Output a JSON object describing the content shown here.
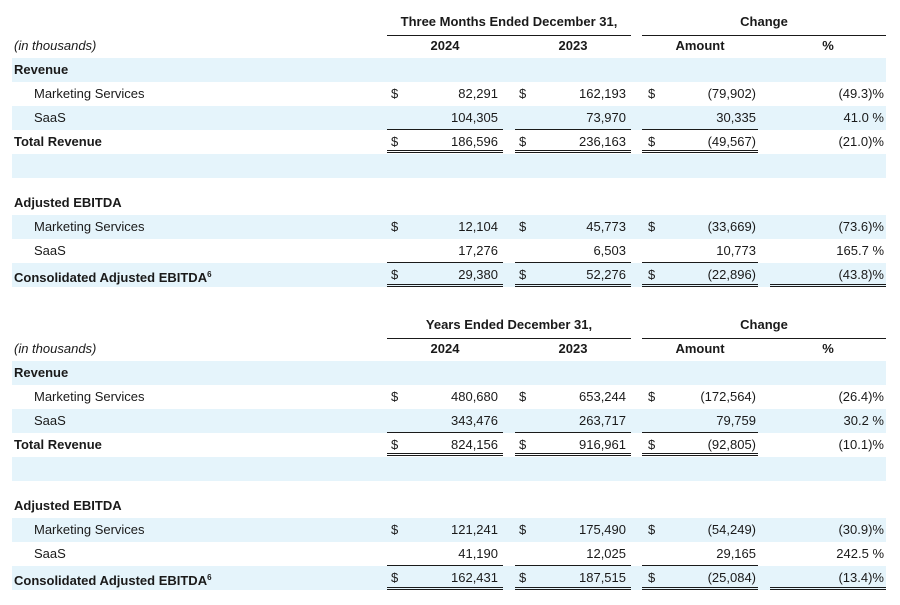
{
  "tables": [
    {
      "period_header": "Three Months Ended December 31,",
      "change_header": "Change",
      "units_label": "(in thousands)",
      "col_2024": "2024",
      "col_2023": "2023",
      "col_amount": "Amount",
      "col_pct": "%",
      "revenue": {
        "section_label": "Revenue",
        "marketing": {
          "label": "Marketing Services",
          "cur1": "$",
          "v2024": "82,291",
          "cur2": "$",
          "v2023": "162,193",
          "cur3": "$",
          "amount": "(79,902)",
          "pct": "(49.3)%"
        },
        "saas": {
          "label": "SaaS",
          "v2024": "104,305",
          "v2023": "73,970",
          "amount": "30,335",
          "pct": "41.0 %"
        },
        "total": {
          "label": "Total Revenue",
          "cur1": "$",
          "v2024": "186,596",
          "cur2": "$",
          "v2023": "236,163",
          "cur3": "$",
          "amount": "(49,567)",
          "pct": "(21.0)%"
        }
      },
      "ebitda": {
        "section_label": "Adjusted EBITDA",
        "marketing": {
          "label": "Marketing Services",
          "cur1": "$",
          "v2024": "12,104",
          "cur2": "$",
          "v2023": "45,773",
          "cur3": "$",
          "amount": "(33,669)",
          "pct": "(73.6)%"
        },
        "saas": {
          "label": "SaaS",
          "v2024": "17,276",
          "v2023": "6,503",
          "amount": "10,773",
          "pct": "165.7 %"
        },
        "total": {
          "label": "Consolidated Adjusted EBITDA",
          "footnote": "6",
          "cur1": "$",
          "v2024": "29,380",
          "cur2": "$",
          "v2023": "52,276",
          "cur3": "$",
          "amount": "(22,896)",
          "pct": "(43.8)%"
        }
      }
    },
    {
      "period_header": "Years Ended December 31,",
      "change_header": "Change",
      "units_label": "(in thousands)",
      "col_2024": "2024",
      "col_2023": "2023",
      "col_amount": "Amount",
      "col_pct": "%",
      "revenue": {
        "section_label": "Revenue",
        "marketing": {
          "label": "Marketing Services",
          "cur1": "$",
          "v2024": "480,680",
          "cur2": "$",
          "v2023": "653,244",
          "cur3": "$",
          "amount": "(172,564)",
          "pct": "(26.4)%"
        },
        "saas": {
          "label": "SaaS",
          "v2024": "343,476",
          "v2023": "263,717",
          "amount": "79,759",
          "pct": "30.2 %"
        },
        "total": {
          "label": "Total Revenue",
          "cur1": "$",
          "v2024": "824,156",
          "cur2": "$",
          "v2023": "916,961",
          "cur3": "$",
          "amount": "(92,805)",
          "pct": "(10.1)%"
        }
      },
      "ebitda": {
        "section_label": "Adjusted EBITDA",
        "marketing": {
          "label": "Marketing Services",
          "cur1": "$",
          "v2024": "121,241",
          "cur2": "$",
          "v2023": "175,490",
          "cur3": "$",
          "amount": "(54,249)",
          "pct": "(30.9)%"
        },
        "saas": {
          "label": "SaaS",
          "v2024": "41,190",
          "v2023": "12,025",
          "amount": "29,165",
          "pct": "242.5 %"
        },
        "total": {
          "label": "Consolidated Adjusted EBITDA",
          "footnote": "6",
          "cur1": "$",
          "v2024": "162,431",
          "cur2": "$",
          "v2023": "187,515",
          "cur3": "$",
          "amount": "(25,084)",
          "pct": "(13.4)%"
        }
      }
    }
  ],
  "colors": {
    "shade": "#e5f4fb",
    "text": "#1a1a1a",
    "rule": "#1a1a1a"
  }
}
